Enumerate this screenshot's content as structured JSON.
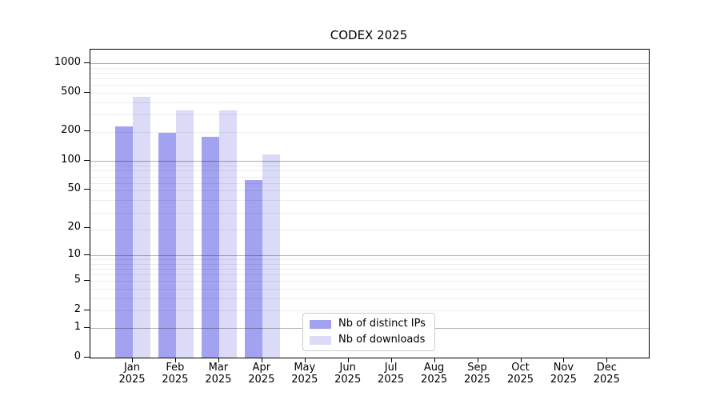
{
  "chart_data": {
    "type": "bar",
    "title": "CODEX 2025",
    "scale": "log10(value+1)",
    "categories": [
      "Jan",
      "Feb",
      "Mar",
      "Apr",
      "May",
      "Jun",
      "Jul",
      "Aug",
      "Sep",
      "Oct",
      "Nov",
      "Dec"
    ],
    "year_label": "2025",
    "series": [
      {
        "name": "Nb of distinct IPs",
        "color": "#a2a2f0",
        "values": [
          227,
          196,
          178,
          64,
          0,
          0,
          0,
          0,
          0,
          0,
          0,
          0
        ]
      },
      {
        "name": "Nb of downloads",
        "color": "#dbdbf8",
        "values": [
          455,
          331,
          334,
          118,
          0,
          0,
          0,
          0,
          0,
          0,
          0,
          0
        ]
      }
    ],
    "yticks": [
      0,
      1,
      2,
      5,
      10,
      20,
      50,
      100,
      200,
      500,
      1000
    ],
    "ylim": [
      0,
      1400
    ],
    "grid": true,
    "legend_position": "lower-center-inside",
    "colors": {
      "major_grid": "rgba(0,0,0,0.28)",
      "minor_grid": "rgba(0,0,0,0.07)",
      "spine": "#000000",
      "background": "#ffffff",
      "legend_border": "#cccccc"
    }
  }
}
